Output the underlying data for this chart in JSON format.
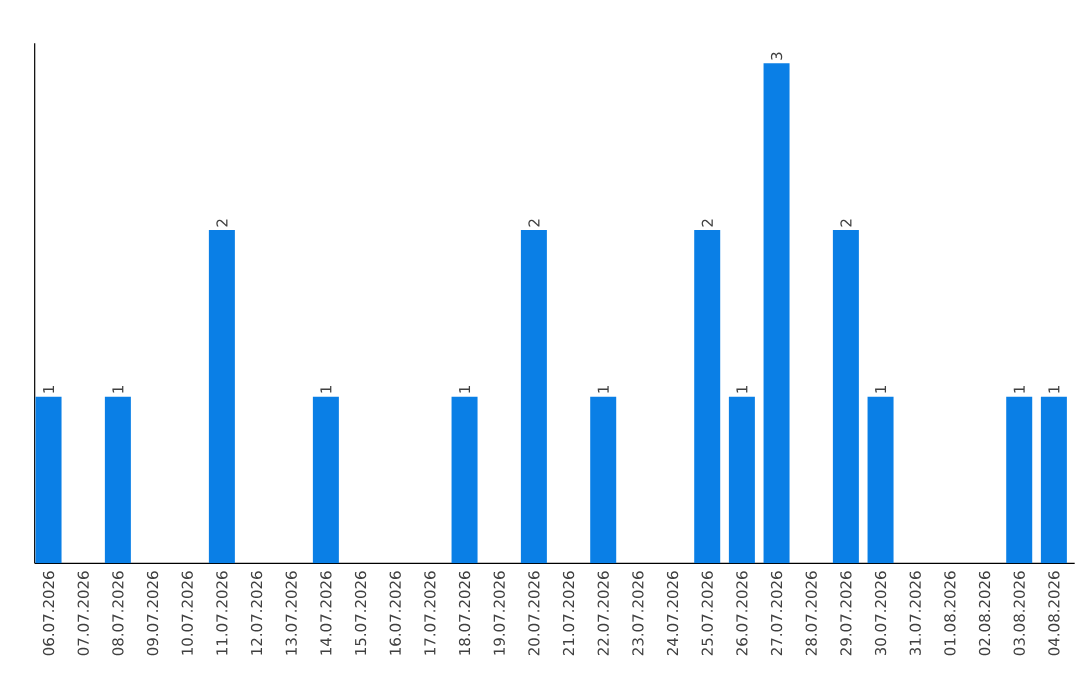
{
  "chart_data": {
    "type": "bar",
    "categories": [
      "06.07.2026",
      "07.07.2026",
      "08.07.2026",
      "09.07.2026",
      "10.07.2026",
      "11.07.2026",
      "12.07.2026",
      "13.07.2026",
      "14.07.2026",
      "15.07.2026",
      "16.07.2026",
      "17.07.2026",
      "18.07.2026",
      "19.07.2026",
      "20.07.2026",
      "21.07.2026",
      "22.07.2026",
      "23.07.2026",
      "24.07.2026",
      "25.07.2026",
      "26.07.2026",
      "27.07.2026",
      "28.07.2026",
      "29.07.2026",
      "30.07.2026",
      "31.07.2026",
      "01.08.2026",
      "02.08.2026",
      "03.08.2026",
      "04.08.2026"
    ],
    "values": [
      1,
      0,
      1,
      0,
      0,
      2,
      0,
      0,
      1,
      0,
      0,
      0,
      1,
      0,
      2,
      0,
      1,
      0,
      0,
      2,
      1,
      3,
      0,
      2,
      1,
      0,
      0,
      0,
      1,
      1
    ],
    "value_labels": [
      "1",
      null,
      "1",
      null,
      null,
      "2",
      null,
      null,
      "1",
      null,
      null,
      null,
      "1",
      null,
      "2",
      null,
      "1",
      null,
      null,
      "2",
      "1",
      "3",
      null,
      "2",
      "1",
      null,
      null,
      null,
      "1",
      "1"
    ],
    "color": "#0a7fe6"
  }
}
